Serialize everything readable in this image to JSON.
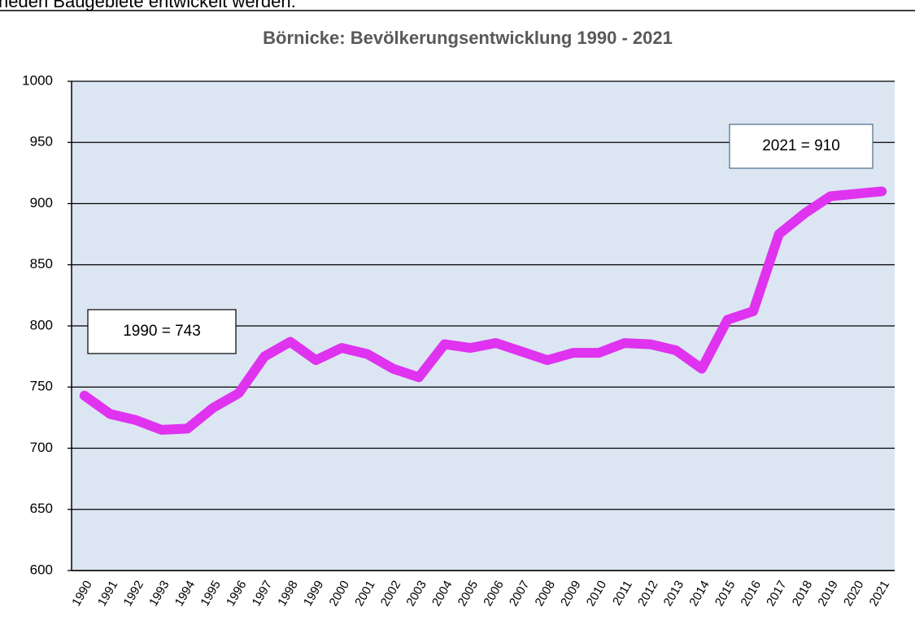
{
  "text_above": "neden Baugebiete entwickelt werden.",
  "chart_data": {
    "type": "line",
    "title": "Börnicke: Bevölkerungsentwicklung 1990 - 2021",
    "categories": [
      "1990",
      "1991",
      "1992",
      "1993",
      "1994",
      "1995",
      "1996",
      "1997",
      "1998",
      "1999",
      "2000",
      "2001",
      "2002",
      "2003",
      "2004",
      "2005",
      "2006",
      "2007",
      "2008",
      "2009",
      "2010",
      "2011",
      "2012",
      "2013",
      "2014",
      "2015",
      "2016",
      "2017",
      "2018",
      "2019",
      "2020",
      "2021"
    ],
    "values": [
      743,
      728,
      723,
      715,
      716,
      733,
      745,
      775,
      787,
      772,
      782,
      777,
      765,
      758,
      785,
      782,
      786,
      779,
      772,
      778,
      778,
      786,
      785,
      780,
      765,
      805,
      812,
      875,
      892,
      906,
      908,
      910
    ],
    "color": "#df33f0",
    "ylim": [
      600,
      1000
    ],
    "yticks": [
      600,
      650,
      700,
      750,
      800,
      850,
      900,
      950,
      1000
    ],
    "grid": true,
    "annotations": [
      "1990 = 743",
      "2021 = 910"
    ]
  }
}
